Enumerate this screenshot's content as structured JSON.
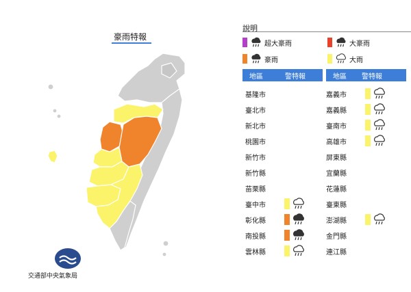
{
  "map": {
    "title": "豪雨特報",
    "agency": "交通部中央氣象局"
  },
  "legend": {
    "title": "說明",
    "items": [
      {
        "label": "超大豪雨",
        "color": "#b340c8",
        "icon": "heavy-rain-icon"
      },
      {
        "label": "大豪雨",
        "color": "#e8412c",
        "icon": "heavy-rain-icon"
      },
      {
        "label": "豪雨",
        "color": "#f0842c",
        "icon": "heavy-rain-icon"
      },
      {
        "label": "大雨",
        "color": "#fbf36a",
        "icon": "rain-outline-icon"
      }
    ]
  },
  "table": {
    "header_region": "地區",
    "header_warning": "警特報",
    "left": [
      {
        "name": "基隆市",
        "level": null
      },
      {
        "name": "臺北市",
        "level": null
      },
      {
        "name": "新北市",
        "level": null
      },
      {
        "name": "桃園市",
        "level": null
      },
      {
        "name": "新竹市",
        "level": null
      },
      {
        "name": "新竹縣",
        "level": null
      },
      {
        "name": "苗栗縣",
        "level": null
      },
      {
        "name": "臺中市",
        "level": "大雨"
      },
      {
        "name": "彰化縣",
        "level": "豪雨"
      },
      {
        "name": "南投縣",
        "level": "豪雨"
      },
      {
        "name": "雲林縣",
        "level": "大雨"
      }
    ],
    "right": [
      {
        "name": "嘉義市",
        "level": "大雨"
      },
      {
        "name": "嘉義縣",
        "level": "大雨"
      },
      {
        "name": "臺南市",
        "level": "大雨"
      },
      {
        "name": "高雄市",
        "level": "大雨"
      },
      {
        "name": "屏東縣",
        "level": null
      },
      {
        "name": "宜蘭縣",
        "level": null
      },
      {
        "name": "花蓮縣",
        "level": null
      },
      {
        "name": "臺東縣",
        "level": null
      },
      {
        "name": "澎湖縣",
        "level": "大雨"
      },
      {
        "name": "金門縣",
        "level": null
      },
      {
        "name": "連江縣",
        "level": null
      }
    ]
  },
  "colors": {
    "accent": "#3d7fd8",
    "grey_region": "#cfcfcf",
    "heavy": "#f0842c",
    "rain": "#fbf36a"
  }
}
